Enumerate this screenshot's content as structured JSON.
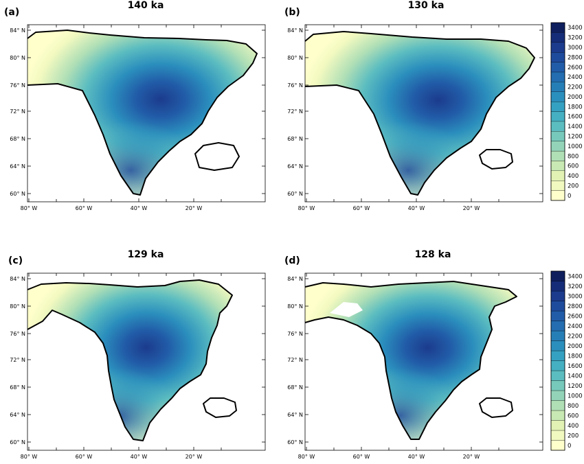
{
  "colorbar": {
    "labels": [
      "0",
      "200",
      "400",
      "600",
      "800",
      "1000",
      "1200",
      "1400",
      "1600",
      "1800",
      "2000",
      "2200",
      "2400",
      "2600",
      "2800",
      "3000",
      "3200",
      "3400"
    ],
    "colors": [
      "#ffffcc",
      "#f2f9c0",
      "#e1f2b4",
      "#c9e9b4",
      "#b0dfb6",
      "#93d4b9",
      "#77c9bb",
      "#5cbdc0",
      "#45b0c2",
      "#35a1c2",
      "#2b8fbd",
      "#267eb7",
      "#236db0",
      "#215ca8",
      "#1f4b9d",
      "#1c3b8d",
      "#152c78",
      "#0f1f5e"
    ]
  },
  "panels": [
    {
      "id": "a",
      "letter": "(a)",
      "title": "140 ka",
      "lat_labels": [
        "84° N",
        "80° N",
        "76° N",
        "72° N",
        "68° N",
        "64° N",
        "60° N"
      ],
      "lon_labels": [
        "80° W",
        "60° W",
        "40° W",
        "20° W"
      ]
    },
    {
      "id": "b",
      "letter": "(b)",
      "title": "130 ka",
      "lat_labels": [
        "84° N",
        "80° N",
        "76° N",
        "72° N",
        "68° N",
        "64° N",
        "60° N"
      ],
      "lon_labels": [
        "80° W",
        "60° W",
        "40° W",
        "20° W"
      ]
    },
    {
      "id": "c",
      "letter": "(c)",
      "title": "129 ka",
      "lat_labels": [
        "84° N",
        "80° N",
        "76° N",
        "72° N",
        "68° N",
        "64° N",
        "60° N"
      ],
      "lon_labels": [
        "80° W",
        "60° W",
        "40° W",
        "20° W"
      ]
    },
    {
      "id": "d",
      "letter": "(d)",
      "title": "128 ka",
      "lat_labels": [
        "84° N",
        "80° N",
        "76° N",
        "72° N",
        "68° N",
        "64° N",
        "60° N"
      ],
      "lon_labels": [
        "80° W",
        "60° W",
        "40° W",
        "20° W"
      ]
    }
  ]
}
